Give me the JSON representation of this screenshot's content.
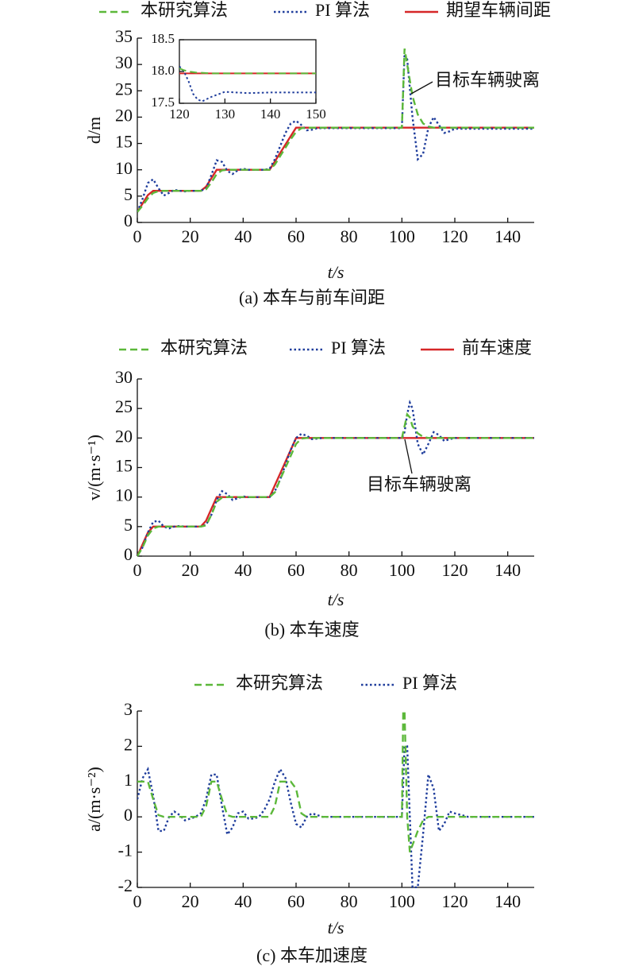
{
  "chart_data": [
    {
      "type": "line",
      "x_label": "t/s",
      "y_label": "d/m",
      "caption": "(a) 本车与前车间距",
      "annotation": "目标车辆驶离",
      "xlim": [
        0,
        150
      ],
      "xticks": [
        0,
        20,
        40,
        60,
        80,
        100,
        120,
        140
      ],
      "ylim": [
        0,
        35
      ],
      "yticks": [
        0,
        5,
        10,
        15,
        20,
        25,
        30,
        35
      ],
      "x": [
        0,
        2,
        4,
        6,
        8,
        10,
        12,
        14,
        16,
        18,
        20,
        22,
        24,
        26,
        28,
        30,
        32,
        34,
        36,
        38,
        40,
        42,
        44,
        46,
        48,
        50,
        52,
        54,
        56,
        58,
        60,
        62,
        64,
        66,
        68,
        70,
        75,
        80,
        85,
        90,
        95,
        99,
        100,
        101,
        102,
        104,
        106,
        108,
        110,
        112,
        114,
        116,
        118,
        120,
        125,
        130,
        135,
        140,
        145,
        150
      ],
      "series": [
        {
          "name": "本研究算法",
          "color": "#5cb83a",
          "dash": "dashed",
          "values": [
            2,
            3.2,
            4.6,
            5.6,
            5.95,
            6,
            6,
            6,
            6,
            6,
            6,
            6,
            6,
            6.3,
            7.6,
            9.2,
            9.9,
            10,
            10,
            10,
            10,
            10,
            10,
            10,
            10,
            10,
            11,
            12.6,
            14.2,
            15.8,
            17.2,
            17.9,
            18,
            18,
            18,
            18,
            18,
            18,
            18,
            18,
            18,
            18,
            18,
            33,
            30,
            24,
            20.5,
            18.8,
            18.2,
            18,
            18,
            18,
            18,
            18,
            18,
            18,
            18,
            18,
            18,
            18
          ]
        },
        {
          "name": "PI 算法",
          "color": "#1f3d9c",
          "dash": "dotted",
          "values": [
            2,
            4.5,
            7.5,
            8.2,
            6.5,
            5.1,
            5.6,
            6.2,
            6,
            5.9,
            6,
            6,
            6,
            6.5,
            9,
            11.8,
            11.5,
            9.8,
            9.2,
            9.9,
            10.2,
            10,
            10,
            10,
            10,
            10.2,
            12,
            14.5,
            17,
            18.8,
            19.3,
            18.5,
            17.5,
            17.6,
            17.9,
            17.9,
            17.9,
            17.9,
            17.9,
            17.9,
            17.9,
            17.9,
            18,
            32,
            31,
            20,
            12,
            13,
            18,
            20,
            18.5,
            17,
            17.3,
            17.8,
            17.8,
            17.8,
            17.8,
            17.8,
            17.8,
            17.8
          ]
        },
        {
          "name": "期望车辆间距",
          "color": "#d62728",
          "dash": "solid",
          "values": [
            2,
            3.6,
            5.2,
            6,
            6,
            6,
            6,
            6,
            6,
            6,
            6,
            6,
            6,
            6.8,
            8.4,
            10,
            10,
            10,
            10,
            10,
            10,
            10,
            10,
            10,
            10,
            10,
            11.6,
            13.2,
            14.8,
            16.4,
            18,
            18,
            18,
            18,
            18,
            18,
            18,
            18,
            18,
            18,
            18,
            18,
            18,
            18,
            18,
            18,
            18,
            18,
            18,
            18,
            18,
            18,
            18,
            18,
            18,
            18,
            18,
            18,
            18,
            18
          ]
        }
      ]
    },
    {
      "type": "line",
      "xlim": [
        120,
        150
      ],
      "xticks": [
        120,
        130,
        140,
        150
      ],
      "ylim": [
        17.5,
        18.5
      ],
      "yticks": [
        17.5,
        {
          "value": 18,
          "label": "18.0"
        },
        18.5
      ],
      "x": [
        120,
        121,
        122,
        123,
        124,
        125,
        127,
        130,
        135,
        140,
        145,
        150
      ],
      "series": [
        {
          "color": "#5cb83a",
          "dash": "dashed",
          "values": [
            18.05,
            18.02,
            18,
            17.99,
            17.98,
            17.98,
            17.97,
            17.97,
            17.97,
            17.97,
            17.97,
            17.97
          ]
        },
        {
          "color": "#1f3d9c",
          "dash": "dotted",
          "values": [
            18.08,
            18,
            17.85,
            17.65,
            17.56,
            17.53,
            17.6,
            17.68,
            17.66,
            17.67,
            17.67,
            17.67
          ]
        },
        {
          "color": "#d62728",
          "dash": "solid",
          "values": [
            17.97,
            17.97,
            17.97,
            17.97,
            17.97,
            17.97,
            17.97,
            17.97,
            17.97,
            17.97,
            17.97,
            17.97
          ]
        }
      ]
    },
    {
      "type": "line",
      "x_label": "t/s",
      "y_label": "v/(m·s⁻¹)",
      "caption": "(b) 本车速度",
      "annotation": "目标车辆驶离",
      "xlim": [
        0,
        150
      ],
      "xticks": [
        0,
        20,
        40,
        60,
        80,
        100,
        120,
        140
      ],
      "ylim": [
        0,
        30
      ],
      "yticks": [
        0,
        5,
        10,
        15,
        20,
        25,
        30
      ],
      "x": [
        0,
        2,
        4,
        6,
        8,
        10,
        12,
        14,
        16,
        18,
        20,
        22,
        24,
        26,
        28,
        30,
        32,
        34,
        36,
        38,
        40,
        42,
        44,
        46,
        48,
        50,
        52,
        54,
        56,
        58,
        60,
        62,
        64,
        66,
        68,
        70,
        75,
        80,
        85,
        90,
        95,
        100,
        101,
        102,
        103,
        104,
        106,
        108,
        110,
        112,
        114,
        116,
        118,
        120,
        125,
        130,
        140,
        150
      ],
      "series": [
        {
          "name": "本研究算法",
          "color": "#5cb83a",
          "dash": "dashed",
          "values": [
            0,
            1.5,
            3.5,
            4.7,
            5,
            5,
            5,
            5,
            5,
            5,
            5,
            5,
            5,
            5.2,
            7,
            9.2,
            9.9,
            10,
            10,
            10,
            10,
            10,
            10,
            10,
            10,
            10,
            10.8,
            13,
            15,
            17,
            19,
            19.9,
            20,
            20,
            20,
            20,
            20,
            20,
            20,
            20,
            20,
            20,
            22,
            24,
            23.5,
            22,
            20.8,
            20.2,
            20,
            20,
            20,
            20,
            20,
            20,
            20,
            20,
            20,
            20
          ]
        },
        {
          "name": "PI 算法",
          "color": "#1f3d9c",
          "dash": "dotted",
          "values": [
            0,
            1.5,
            4,
            5.8,
            6,
            5,
            4.7,
            5,
            5.1,
            5,
            5,
            5,
            5,
            5.3,
            7,
            9.5,
            11,
            10.5,
            9.5,
            9.8,
            10.1,
            10,
            10,
            10,
            10,
            10,
            11,
            13,
            15.5,
            18,
            20,
            20.7,
            20.4,
            19.8,
            19.9,
            20,
            20,
            20,
            20,
            20,
            20,
            20,
            21,
            24,
            26,
            25,
            19,
            17.2,
            19,
            21,
            20.5,
            19.5,
            19.8,
            20,
            20,
            20,
            20,
            20
          ]
        },
        {
          "name": "前车速度",
          "color": "#d62728",
          "dash": "solid",
          "values": [
            0,
            2,
            4,
            5,
            5,
            5,
            5,
            5,
            5,
            5,
            5,
            5,
            5,
            6,
            8,
            10,
            10,
            10,
            10,
            10,
            10,
            10,
            10,
            10,
            10,
            10,
            12,
            14,
            16,
            18,
            20,
            20,
            20,
            20,
            20,
            20,
            20,
            20,
            20,
            20,
            20,
            20,
            20,
            20,
            20,
            20,
            20,
            20,
            20,
            20,
            20,
            20,
            20,
            20,
            20,
            20,
            20,
            20
          ]
        }
      ]
    },
    {
      "type": "line",
      "x_label": "t/s",
      "y_label": "a/(m·s⁻²)",
      "caption": "(c) 本车加速度",
      "xlim": [
        0,
        150
      ],
      "xticks": [
        0,
        20,
        40,
        60,
        80,
        100,
        120,
        140
      ],
      "ylim": [
        -2,
        3
      ],
      "yticks": [
        -2,
        -1,
        0,
        1,
        2,
        3
      ],
      "x": [
        0,
        2,
        4,
        6,
        8,
        10,
        12,
        14,
        16,
        18,
        20,
        22,
        24,
        26,
        28,
        30,
        32,
        34,
        36,
        38,
        40,
        42,
        44,
        46,
        48,
        50,
        52,
        54,
        56,
        58,
        60,
        62,
        64,
        66,
        68,
        70,
        75,
        80,
        85,
        90,
        95,
        100,
        100.5,
        101,
        102,
        103,
        104,
        106,
        108,
        110,
        112,
        114,
        116,
        118,
        120,
        125,
        130,
        140,
        150
      ],
      "series": [
        {
          "name": "本研究算法",
          "color": "#5cb83a",
          "dash": "dashed",
          "values": [
            1,
            1,
            1,
            0.5,
            0.05,
            0,
            0,
            0,
            0,
            0,
            0,
            0,
            0,
            0.3,
            1,
            1,
            0.5,
            0.05,
            0,
            0,
            0,
            0,
            0,
            0,
            0,
            0,
            0.3,
            1,
            1,
            1,
            0.8,
            0.1,
            0,
            0,
            0,
            0,
            0,
            0,
            0,
            0,
            0,
            0,
            3,
            3,
            0,
            -1,
            -0.8,
            -0.4,
            -0.1,
            0,
            0,
            0,
            0,
            0,
            0,
            0,
            0,
            0,
            0
          ]
        },
        {
          "name": "PI 算法",
          "color": "#1f3d9c",
          "dash": "dotted",
          "values": [
            0.5,
            1.1,
            1.35,
            0.6,
            -0.4,
            -0.4,
            0,
            0.15,
            0.05,
            -0.1,
            -0.05,
            0,
            0.1,
            0.5,
            1.2,
            1.2,
            0.3,
            -0.5,
            -0.3,
            0.1,
            0.15,
            -0.05,
            -0.05,
            0,
            0.2,
            0.5,
            1,
            1.35,
            1.1,
            0.4,
            -0.2,
            -0.3,
            0,
            0.1,
            0.05,
            0,
            0,
            0,
            0,
            0,
            0,
            0,
            1,
            2,
            2,
            0,
            -2,
            -2,
            -0.5,
            1.2,
            0.8,
            -0.4,
            -0.2,
            0.15,
            0.1,
            0,
            0,
            0,
            0
          ]
        }
      ]
    }
  ]
}
